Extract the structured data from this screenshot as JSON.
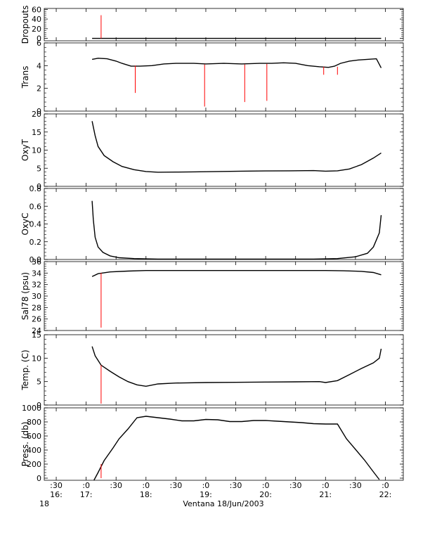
{
  "chart_data": [
    {
      "type": "line",
      "ylabel": "Dropouts",
      "ylim": [
        -5,
        62
      ],
      "yticks": [
        0,
        20,
        40,
        60
      ],
      "series": [
        {
          "name": "",
          "color": "#000000",
          "x": [
            17.1,
            21.93
          ],
          "y": [
            0,
            0
          ]
        },
        {
          "name": "",
          "color": "#ff0000",
          "x": [
            17.25,
            17.25
          ],
          "y": [
            0,
            48
          ]
        }
      ]
    },
    {
      "type": "line",
      "ylabel": "Trans",
      "ylim": [
        0,
        6
      ],
      "yticks": [
        0,
        2,
        4,
        6
      ],
      "series": [
        {
          "name": "",
          "color": "#000000",
          "x": [
            17.1,
            17.2,
            17.35,
            17.5,
            17.6,
            17.75,
            17.9,
            18.1,
            18.3,
            18.5,
            18.8,
            19.0,
            19.3,
            19.6,
            19.9,
            20.1,
            20.3,
            20.5,
            20.7,
            20.9,
            21.05,
            21.15,
            21.25,
            21.4,
            21.55,
            21.7,
            21.85,
            21.93
          ],
          "y": [
            4.55,
            4.65,
            4.6,
            4.4,
            4.2,
            3.95,
            3.95,
            4.0,
            4.15,
            4.2,
            4.2,
            4.15,
            4.2,
            4.15,
            4.2,
            4.2,
            4.25,
            4.2,
            4.0,
            3.9,
            3.85,
            3.95,
            4.2,
            4.4,
            4.5,
            4.55,
            4.6,
            3.8
          ]
        },
        {
          "name": "",
          "color": "#ff0000",
          "x": [
            17.82,
            17.82
          ],
          "y": [
            4.0,
            1.6
          ]
        },
        {
          "name": "",
          "color": "#ff0000",
          "x": [
            18.98,
            18.98
          ],
          "y": [
            4.1,
            0.4
          ]
        },
        {
          "name": "",
          "color": "#ff0000",
          "x": [
            19.65,
            19.65
          ],
          "y": [
            4.1,
            0.8
          ]
        },
        {
          "name": "",
          "color": "#ff0000",
          "x": [
            20.02,
            20.02
          ],
          "y": [
            4.15,
            0.9
          ]
        },
        {
          "name": "",
          "color": "#ff0000",
          "x": [
            20.97,
            20.97
          ],
          "y": [
            3.9,
            3.2
          ]
        },
        {
          "name": "",
          "color": "#ff0000",
          "x": [
            21.2,
            21.2
          ],
          "y": [
            3.9,
            3.2
          ]
        }
      ]
    },
    {
      "type": "line",
      "ylabel": "OxyT",
      "ylim": [
        0,
        20
      ],
      "yticks": [
        0,
        5,
        10,
        15,
        20
      ],
      "series": [
        {
          "name": "",
          "color": "#000000",
          "x": [
            17.1,
            17.15,
            17.2,
            17.3,
            17.45,
            17.6,
            17.8,
            18.0,
            18.2,
            18.5,
            18.8,
            19.2,
            19.6,
            20.0,
            20.4,
            20.8,
            21.0,
            21.2,
            21.4,
            21.6,
            21.8,
            21.93
          ],
          "y": [
            18,
            14,
            11,
            8.5,
            6.8,
            5.5,
            4.6,
            4.1,
            3.9,
            3.95,
            4.0,
            4.1,
            4.2,
            4.25,
            4.3,
            4.35,
            4.2,
            4.3,
            4.8,
            6.0,
            7.8,
            9.2
          ]
        }
      ]
    },
    {
      "type": "line",
      "ylabel": "OxyC",
      "ylim": [
        0,
        0.8
      ],
      "yticks": [
        0.0,
        0.2,
        0.4,
        0.6,
        0.8
      ],
      "series": [
        {
          "name": "",
          "color": "#000000",
          "x": [
            17.1,
            17.12,
            17.15,
            17.2,
            17.28,
            17.4,
            17.55,
            17.8,
            18.2,
            19.0,
            20.0,
            20.8,
            21.2,
            21.5,
            21.7,
            21.8,
            21.85,
            21.9,
            21.93
          ],
          "y": [
            0.66,
            0.45,
            0.25,
            0.14,
            0.08,
            0.04,
            0.02,
            0.01,
            0.005,
            0.005,
            0.005,
            0.005,
            0.01,
            0.03,
            0.07,
            0.14,
            0.22,
            0.3,
            0.5
          ]
        }
      ]
    },
    {
      "type": "line",
      "ylabel": "Sal78 (psu)",
      "ylim": [
        24,
        36
      ],
      "yticks": [
        24,
        26,
        28,
        30,
        32,
        34,
        36
      ],
      "series": [
        {
          "name": "",
          "color": "#000000",
          "x": [
            17.1,
            17.2,
            17.4,
            17.7,
            18.0,
            18.5,
            19.0,
            19.5,
            20.0,
            20.5,
            21.0,
            21.3,
            21.6,
            21.8,
            21.93
          ],
          "y": [
            33.4,
            33.9,
            34.2,
            34.35,
            34.45,
            34.45,
            34.45,
            34.45,
            34.45,
            34.45,
            34.45,
            34.4,
            34.3,
            34.1,
            33.7
          ]
        },
        {
          "name": "",
          "color": "#ff0000",
          "x": [
            17.25,
            17.25
          ],
          "y": [
            34.0,
            24.5
          ]
        }
      ]
    },
    {
      "type": "line",
      "ylabel": "Temp. (C)",
      "ylim": [
        0,
        15
      ],
      "yticks": [
        0,
        5,
        10,
        15
      ],
      "series": [
        {
          "name": "",
          "color": "#000000",
          "x": [
            17.1,
            17.15,
            17.25,
            17.4,
            17.55,
            17.7,
            17.85,
            18.0,
            18.2,
            18.5,
            19.0,
            19.5,
            20.0,
            20.5,
            20.9,
            21.0,
            21.2,
            21.4,
            21.6,
            21.8,
            21.9,
            21.93
          ],
          "y": [
            12.5,
            10.5,
            8.5,
            7.2,
            6.0,
            5.0,
            4.3,
            4.0,
            4.5,
            4.7,
            4.8,
            4.85,
            4.9,
            4.95,
            5.0,
            4.8,
            5.2,
            6.5,
            7.8,
            9.0,
            10.0,
            12.0
          ]
        },
        {
          "name": "",
          "color": "#ff0000",
          "x": [
            17.25,
            17.25
          ],
          "y": [
            8.5,
            0.3
          ]
        }
      ]
    },
    {
      "type": "line",
      "ylabel": "Press. (db)",
      "ylim": [
        -30,
        1000
      ],
      "yticks": [
        0,
        200,
        400,
        600,
        800,
        1000
      ],
      "series": [
        {
          "name": "",
          "color": "#000000",
          "x": [
            17.13,
            17.2,
            17.3,
            17.45,
            17.55,
            17.7,
            17.85,
            18.0,
            18.2,
            18.4,
            18.6,
            18.8,
            19.0,
            19.2,
            19.4,
            19.6,
            19.8,
            20.0,
            20.2,
            20.4,
            20.6,
            20.8,
            21.0,
            21.2,
            21.35,
            21.5,
            21.65,
            21.8,
            21.9
          ],
          "y": [
            -30,
            80,
            250,
            430,
            560,
            700,
            860,
            880,
            860,
            840,
            815,
            815,
            835,
            830,
            805,
            805,
            820,
            820,
            810,
            800,
            790,
            775,
            770,
            770,
            560,
            410,
            260,
            90,
            -20
          ]
        },
        {
          "name": "",
          "color": "#ff0000",
          "x": [
            17.25,
            17.25
          ],
          "y": [
            0,
            200
          ]
        }
      ]
    }
  ],
  "xaxis": {
    "xlim": [
      16.3,
      22.3
    ],
    "ticks": [
      16.5,
      17.0,
      17.5,
      18.0,
      18.5,
      19.0,
      19.5,
      20.0,
      20.5,
      21.0,
      21.5,
      22.0
    ],
    "tick_labels_row1": [
      ":30",
      ":0",
      ":30",
      ":0",
      ":30",
      ":0",
      ":30",
      ":0",
      ":30",
      ":0",
      ":30",
      ":0"
    ],
    "tick_labels_row2": [
      "16:",
      "17:",
      "",
      "18:",
      "",
      "19:",
      "",
      "20:",
      "",
      "21:",
      "",
      "22:"
    ],
    "start_day": "18",
    "xlabel": "Ventana 18/Jun/2003"
  }
}
